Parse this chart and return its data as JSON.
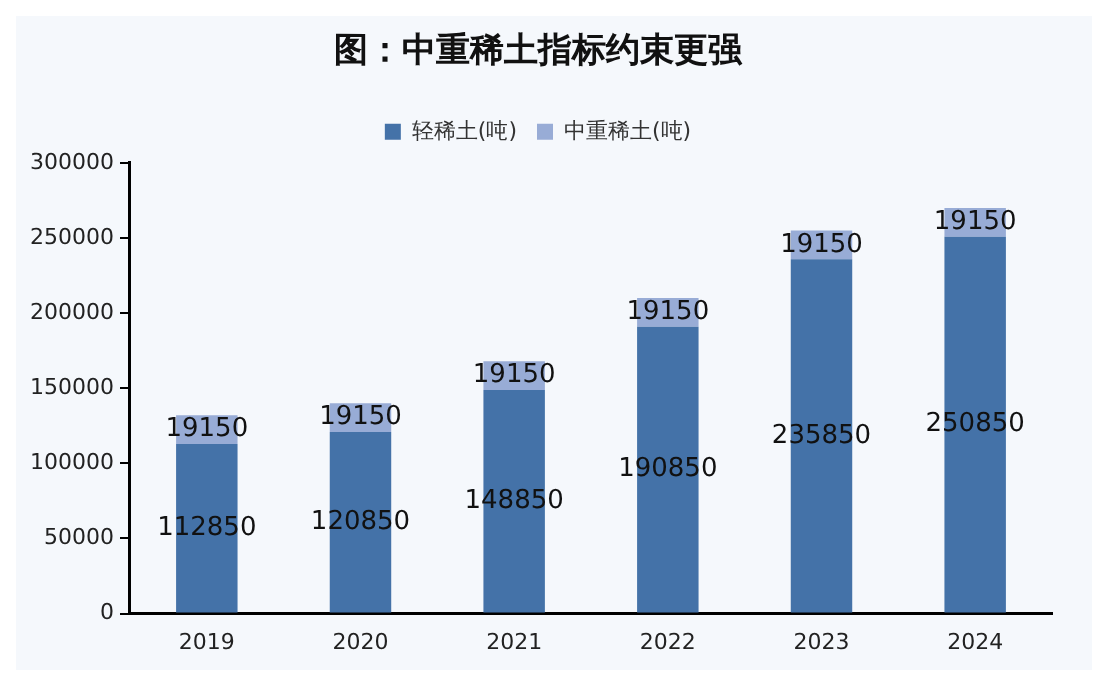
{
  "chart_data": {
    "type": "bar",
    "title": "图：中重稀土指标约束更强",
    "categories": [
      "2019",
      "2020",
      "2021",
      "2022",
      "2023",
      "2024"
    ],
    "series": [
      {
        "name": "轻稀土(吨)",
        "color": "#4472a8",
        "values": [
          112850,
          120850,
          148850,
          190850,
          235850,
          250850
        ]
      },
      {
        "name": "中重稀土(吨)",
        "color": "#98acd6",
        "values": [
          19150,
          19150,
          19150,
          19150,
          19150,
          19150
        ]
      }
    ],
    "stacked": true,
    "ylim": [
      0,
      300000
    ],
    "yticks": [
      0,
      50000,
      100000,
      150000,
      200000,
      250000,
      300000
    ],
    "grid": false,
    "legend": "top",
    "data_labels": true
  }
}
